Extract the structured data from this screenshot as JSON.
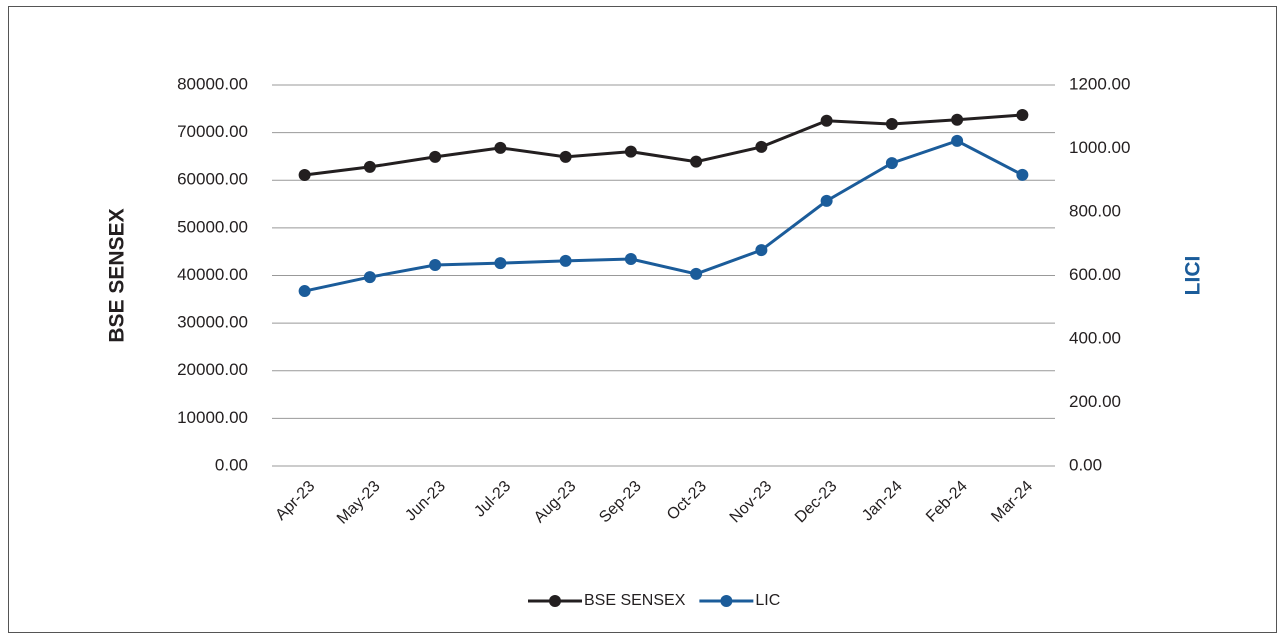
{
  "chart_data": {
    "type": "line",
    "categories": [
      "Apr-23",
      "May-23",
      "Jun-23",
      "Jul-23",
      "Aug-23",
      "Sep-23",
      "Oct-23",
      "Nov-23",
      "Dec-23",
      "Jan-24",
      "Feb-24",
      "Mar-24"
    ],
    "series": [
      {
        "name": "BSE SENSEX",
        "color": "#231f20",
        "values": [
          61100,
          62800,
          64900,
          66800,
          64900,
          66000,
          63900,
          67000,
          72500,
          71800,
          72700,
          73700
        ]
      },
      {
        "name": "LIC",
        "color": "#1b5c9a",
        "axis": "y2",
        "values": [
          551,
          595,
          633,
          639,
          646,
          652,
          605,
          680,
          835,
          954,
          1024,
          917
        ]
      }
    ],
    "ylabel": "BSE SENSEX",
    "y2label": "LICI",
    "ylim": [
      0,
      80000
    ],
    "yticks": [
      {
        "value": 0,
        "label": "0.00"
      },
      {
        "value": 10000,
        "label": "10000.00"
      },
      {
        "value": 20000,
        "label": "20000.00"
      },
      {
        "value": 30000,
        "label": "30000.00"
      },
      {
        "value": 40000,
        "label": "40000.00"
      },
      {
        "value": 50000,
        "label": "50000.00"
      },
      {
        "value": 60000,
        "label": "60000.00"
      },
      {
        "value": 70000,
        "label": "70000.00"
      },
      {
        "value": 80000,
        "label": "80000.00"
      }
    ],
    "y2lim": [
      0,
      1200
    ],
    "y2ticks": [
      {
        "value": 0,
        "label": "0.00"
      },
      {
        "value": 200,
        "label": "200.00"
      },
      {
        "value": 400,
        "label": "400.00"
      },
      {
        "value": 600,
        "label": "600.00"
      },
      {
        "value": 800,
        "label": "800.00"
      },
      {
        "value": 1000,
        "label": "1000.00"
      },
      {
        "value": 1200,
        "label": "1200.00"
      }
    ],
    "grid": true,
    "legend": "bottom"
  }
}
